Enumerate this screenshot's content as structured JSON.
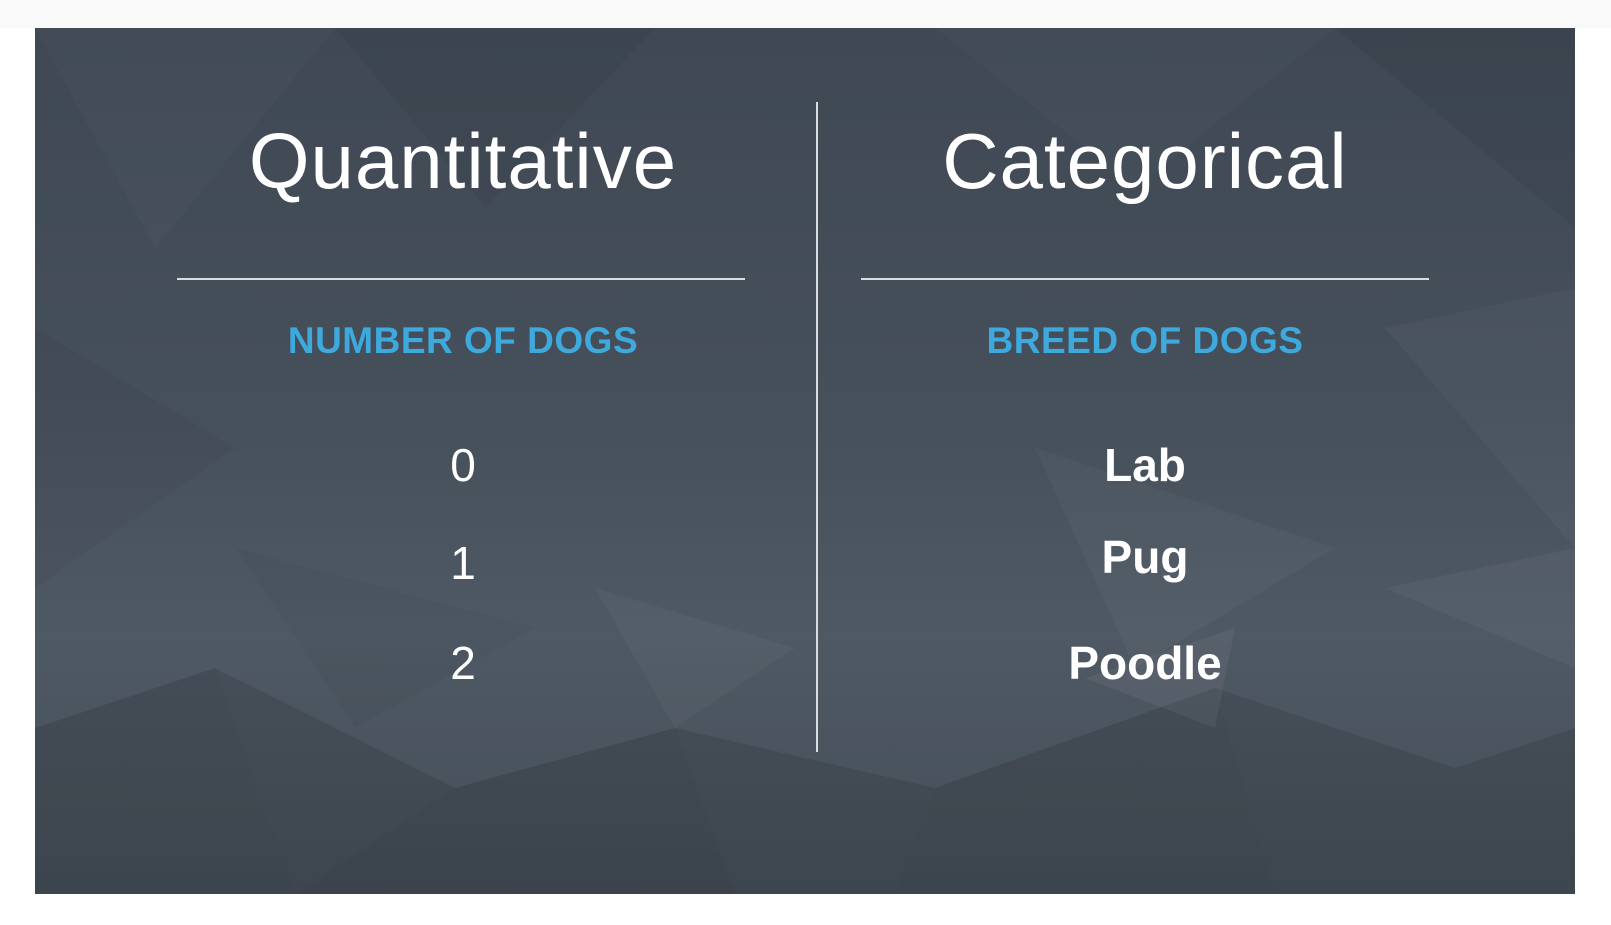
{
  "slide": {
    "left": {
      "heading": "Quantitative",
      "subheading": "NUMBER OF DOGS",
      "items": [
        "0",
        "1",
        "2"
      ]
    },
    "right": {
      "heading": "Categorical",
      "subheading": "BREED OF DOGS",
      "items": [
        "Lab",
        "Pug",
        "Poodle"
      ]
    }
  },
  "colors": {
    "background": "#46505b",
    "accent": "#3ea9dc",
    "text": "#ffffff",
    "rule": "#d9dde2"
  }
}
